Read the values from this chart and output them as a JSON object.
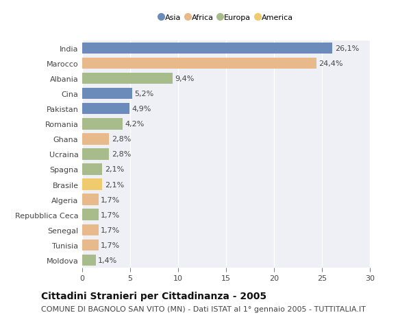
{
  "countries": [
    "India",
    "Marocco",
    "Albania",
    "Cina",
    "Pakistan",
    "Romania",
    "Ghana",
    "Ucraina",
    "Spagna",
    "Brasile",
    "Algeria",
    "Repubblica Ceca",
    "Senegal",
    "Tunisia",
    "Moldova"
  ],
  "values": [
    26.1,
    24.4,
    9.4,
    5.2,
    4.9,
    4.2,
    2.8,
    2.8,
    2.1,
    2.1,
    1.7,
    1.7,
    1.7,
    1.7,
    1.4
  ],
  "continents": [
    "Asia",
    "Africa",
    "Europa",
    "Asia",
    "Asia",
    "Europa",
    "Africa",
    "Europa",
    "Europa",
    "America",
    "Africa",
    "Europa",
    "Africa",
    "Africa",
    "Europa"
  ],
  "colors": {
    "Asia": "#6b8cba",
    "Africa": "#e8b98a",
    "Europa": "#a8bb8a",
    "America": "#f0cb6e"
  },
  "legend_order": [
    "Asia",
    "Africa",
    "Europa",
    "America"
  ],
  "xlim": [
    0,
    30
  ],
  "xticks": [
    0,
    5,
    10,
    15,
    20,
    25,
    30
  ],
  "title": "Cittadini Stranieri per Cittadinanza - 2005",
  "subtitle": "COMUNE DI BAGNOLO SAN VITO (MN) - Dati ISTAT al 1° gennaio 2005 - TUTTITALIA.IT",
  "background_color": "#ffffff",
  "plot_bg_color": "#eef0f5",
  "grid_color": "#ffffff",
  "bar_height": 0.75,
  "label_fontsize": 8.0,
  "tick_fontsize": 8.0,
  "title_fontsize": 10,
  "subtitle_fontsize": 8
}
